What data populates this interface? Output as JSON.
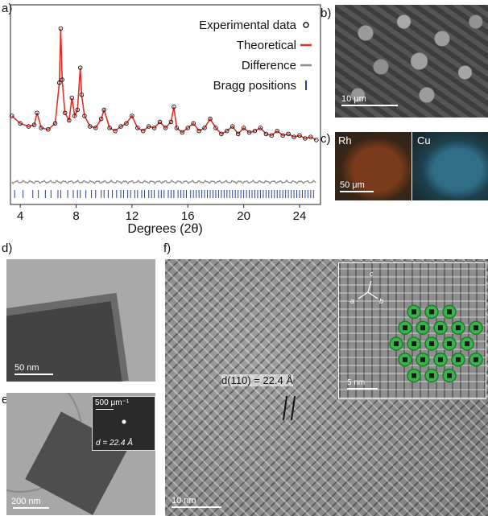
{
  "panels": {
    "a": {
      "label": "a)"
    },
    "b": {
      "label": "b)",
      "scalebar": "10 μm"
    },
    "c": {
      "label": "c)",
      "left_label": "Rh",
      "right_label": "Cu",
      "scalebar": "50 μm"
    },
    "d": {
      "label": "d)",
      "scalebar": "50 nm"
    },
    "e": {
      "label": "e)",
      "scalebar": "200 nm",
      "inset_scale": "500 μm⁻¹",
      "inset_text": "d = 22.4 Å"
    },
    "f": {
      "label": "f)",
      "scalebar": "10 nm",
      "annotation": "d(110) = 22.4 Å",
      "inset_scalebar": "5 nm",
      "axis_c": "c",
      "axis_a": "a",
      "axis_b": "b"
    }
  },
  "colors": {
    "experimental": "#111111",
    "theoretical": "#e0302a",
    "difference": "#8a8a8a",
    "bragg": "#2a3f9a"
  },
  "chart_data": {
    "type": "line",
    "xlabel": "Degrees (2θ)",
    "ylabel": "",
    "xlim": [
      3.3,
      25.5
    ],
    "ylim": [
      0,
      100
    ],
    "x_ticks": [
      "4",
      "8",
      "12",
      "16",
      "20",
      "24"
    ],
    "legend_position": "top-right",
    "legend": [
      "Experimental data",
      "Theoretical",
      "Difference",
      "Bragg positions"
    ],
    "series": [
      {
        "name": "Experimental data",
        "x": [
          3.4,
          4.0,
          4.6,
          5.0,
          5.2,
          5.5,
          6.0,
          6.5,
          6.8,
          6.9,
          7.0,
          7.2,
          7.5,
          7.7,
          7.9,
          8.1,
          8.3,
          8.4,
          8.6,
          9.0,
          9.4,
          9.8,
          10.0,
          10.4,
          10.8,
          11.2,
          11.6,
          12.0,
          12.4,
          12.8,
          13.2,
          13.6,
          14.0,
          14.4,
          14.8,
          15.0,
          15.2,
          15.6,
          16.0,
          16.4,
          16.8,
          17.2,
          17.6,
          18.0,
          18.4,
          18.8,
          19.2,
          19.6,
          20.0,
          20.4,
          20.8,
          21.2,
          21.6,
          22.0,
          22.4,
          22.8,
          23.2,
          23.6,
          24.0,
          24.4,
          24.8,
          25.2
        ],
        "y": [
          38,
          33,
          31,
          32,
          40,
          30,
          29,
          33,
          60,
          96,
          62,
          40,
          35,
          50,
          38,
          42,
          70,
          52,
          38,
          31,
          30,
          36,
          42,
          30,
          28,
          31,
          33,
          38,
          30,
          28,
          31,
          30,
          34,
          30,
          34,
          44,
          30,
          27,
          30,
          33,
          28,
          30,
          36,
          30,
          26,
          28,
          31,
          26,
          30,
          27,
          28,
          30,
          26,
          25,
          28,
          25,
          26,
          24,
          25,
          23,
          24,
          22
        ]
      },
      {
        "name": "Theoretical",
        "x": [
          3.4,
          4.0,
          4.6,
          5.0,
          5.2,
          5.5,
          6.0,
          6.5,
          6.8,
          6.9,
          7.0,
          7.2,
          7.5,
          7.7,
          7.9,
          8.1,
          8.3,
          8.4,
          8.6,
          9.0,
          9.4,
          9.8,
          10.0,
          10.4,
          10.8,
          11.2,
          11.6,
          12.0,
          12.4,
          12.8,
          13.2,
          13.6,
          14.0,
          14.4,
          14.8,
          15.0,
          15.2,
          15.6,
          16.0,
          16.4,
          16.8,
          17.2,
          17.6,
          18.0,
          18.4,
          18.8,
          19.2,
          19.6,
          20.0,
          20.4,
          20.8,
          21.2,
          21.6,
          22.0,
          22.4,
          22.8,
          23.2,
          23.6,
          24.0,
          24.4,
          24.8,
          25.2
        ],
        "y": [
          38,
          33,
          31,
          32,
          40,
          30,
          29,
          33,
          60,
          96,
          62,
          40,
          35,
          50,
          38,
          42,
          70,
          52,
          38,
          31,
          30,
          36,
          42,
          30,
          28,
          31,
          33,
          38,
          30,
          28,
          31,
          30,
          34,
          30,
          34,
          44,
          30,
          27,
          30,
          33,
          28,
          30,
          36,
          30,
          26,
          28,
          31,
          26,
          30,
          27,
          28,
          30,
          26,
          25,
          28,
          25,
          26,
          24,
          25,
          23,
          24,
          22
        ]
      },
      {
        "name": "Difference",
        "x": [
          3.4,
          25.2
        ],
        "y": [
          10,
          10
        ]
      }
    ],
    "bragg_positions": [
      3.6,
      4.2,
      4.9,
      5.3,
      5.8,
      6.2,
      6.7,
      6.9,
      7.4,
      7.8,
      8.1,
      8.3,
      8.7,
      9.1,
      9.4,
      9.8,
      10.0,
      10.3,
      10.6,
      10.9,
      11.2,
      11.4,
      11.7,
      11.9,
      12.2,
      12.4,
      12.7,
      12.9,
      13.2,
      13.4,
      13.6,
      13.9,
      14.1,
      14.3,
      14.6,
      14.8,
      15.0,
      15.3,
      15.5,
      15.7,
      15.9,
      16.2,
      16.4,
      16.6,
      16.8,
      17.0,
      17.2,
      17.4,
      17.6,
      17.8,
      18.0,
      18.2,
      18.4,
      18.6,
      18.8,
      19.0,
      19.2,
      19.4,
      19.6,
      19.8,
      20.0,
      20.2,
      20.4,
      20.6,
      20.8,
      21.0,
      21.2,
      21.4,
      21.6,
      21.8,
      22.0,
      22.2,
      22.4,
      22.6,
      22.8,
      23.0,
      23.2,
      23.4,
      23.6,
      23.8,
      24.0,
      24.2,
      24.4,
      24.6,
      24.8,
      25.0
    ]
  }
}
